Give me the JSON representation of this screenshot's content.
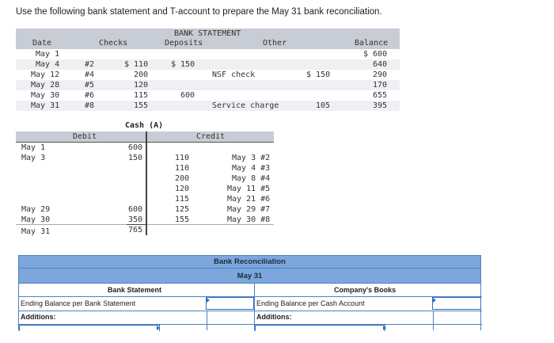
{
  "instruction": "Use the following bank statement and T-account to prepare the May 31 bank reconciliation.",
  "bank_statement": {
    "title": "BANK STATEMENT",
    "headers": {
      "date": "Date",
      "checks": "Checks",
      "deposits": "Deposits",
      "other": "Other",
      "balance": "Balance"
    },
    "rows": [
      {
        "date": "May 1",
        "check_no": "",
        "check_amt": "",
        "deposit": "",
        "other_desc": "",
        "other_amt": "",
        "balance": "$ 600"
      },
      {
        "date": "May 4",
        "check_no": "#2",
        "check_amt": "$ 110",
        "deposit": "$ 150",
        "other_desc": "",
        "other_amt": "",
        "balance": "640"
      },
      {
        "date": "May 12",
        "check_no": "#4",
        "check_amt": "200",
        "deposit": "",
        "other_desc": "NSF check",
        "other_amt": "$ 150",
        "balance": "290"
      },
      {
        "date": "May 28",
        "check_no": "#5",
        "check_amt": "120",
        "deposit": "",
        "other_desc": "",
        "other_amt": "",
        "balance": "170"
      },
      {
        "date": "May 30",
        "check_no": "#6",
        "check_amt": "115",
        "deposit": "600",
        "other_desc": "",
        "other_amt": "",
        "balance": "655"
      },
      {
        "date": "May 31",
        "check_no": "#8",
        "check_amt": "155",
        "deposit": "",
        "other_desc": "Service charge",
        "other_amt": "105",
        "balance": "395"
      }
    ]
  },
  "t_account": {
    "title": "Cash (A)",
    "debit_label": "Debit",
    "credit_label": "Credit",
    "debits": [
      {
        "date": "May 1",
        "amount": "600"
      },
      {
        "date": "May 3",
        "amount": "150"
      },
      {
        "date": "May 29",
        "amount": "600"
      },
      {
        "date": "May 30",
        "amount": "350"
      },
      {
        "date": "May 31",
        "amount": "765"
      }
    ],
    "credits": [
      {
        "amount": "110",
        "ref": "May 3 #2"
      },
      {
        "amount": "110",
        "ref": "May 4 #3"
      },
      {
        "amount": "200",
        "ref": "May 8 #4"
      },
      {
        "amount": "120",
        "ref": "May 11 #5"
      },
      {
        "amount": "115",
        "ref": "May 21 #6"
      },
      {
        "amount": "125",
        "ref": "May 29 #7"
      },
      {
        "amount": "155",
        "ref": "May 30 #8"
      }
    ]
  },
  "reconciliation": {
    "title": "Bank Reconciliation",
    "subtitle": "May 31",
    "bank_side": {
      "heading": "Bank Statement",
      "ending_label": "Ending Balance per Bank Statement",
      "additions_label": "Additions:"
    },
    "book_side": {
      "heading": "Company's Books",
      "ending_label": "Ending Balance per Cash Account",
      "additions_label": "Additions:"
    }
  }
}
